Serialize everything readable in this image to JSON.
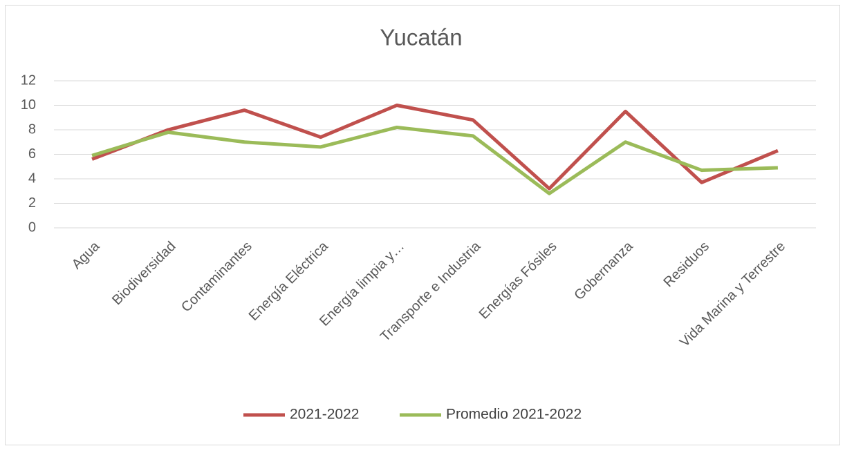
{
  "chart_data": {
    "type": "line",
    "title": "Yucatán",
    "categories": [
      "Agua",
      "Biodiversidad",
      "Contaminantes",
      "Energía Eléctrica",
      "Energía limpia y…",
      "Transporte e Industria",
      "Energías Fósiles",
      "Gobernanza",
      "Residuos",
      "Vida Marina y Terrestre"
    ],
    "series": [
      {
        "name": "2021-2022",
        "color": "#c0504d",
        "values": [
          5.6,
          8.0,
          9.6,
          7.4,
          10.0,
          8.8,
          3.2,
          9.5,
          3.7,
          6.3
        ]
      },
      {
        "name": "Promedio 2021-2022",
        "color": "#9bbb59",
        "values": [
          5.9,
          7.8,
          7.0,
          6.6,
          8.2,
          7.5,
          2.8,
          7.0,
          4.7,
          4.9
        ]
      }
    ],
    "ylim": [
      0,
      12
    ],
    "yticks": [
      0,
      2,
      4,
      6,
      8,
      10,
      12
    ],
    "grid": true,
    "legend": "bottom"
  }
}
